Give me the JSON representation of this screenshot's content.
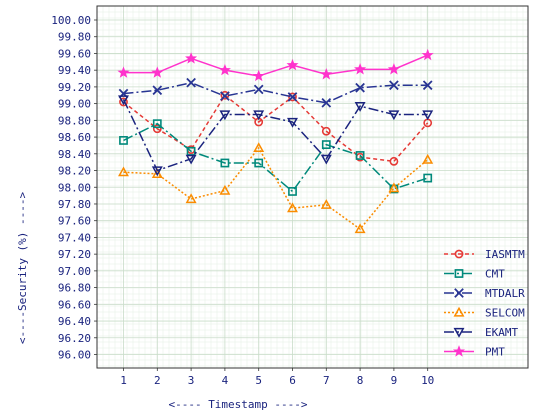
{
  "chart_data": {
    "type": "line",
    "xlabel": "<---- Timestamp ---->",
    "ylabel": "<----Security (%) ---->",
    "x": [
      1,
      2,
      3,
      4,
      5,
      6,
      7,
      8,
      9,
      10
    ],
    "xlim": [
      0,
      11
    ],
    "ylim": [
      95.4,
      100.1
    ],
    "y_ticks": [
      96.0,
      96.2,
      96.4,
      96.6,
      96.8,
      97.0,
      97.2,
      97.4,
      97.6,
      97.8,
      98.0,
      98.2,
      98.4,
      98.6,
      98.8,
      99.0,
      99.2,
      99.4,
      99.6,
      99.8,
      100.0
    ],
    "y_tick_labels": [
      "96.00",
      "96.20",
      "96.40",
      "96.60",
      "96.80",
      "97.00",
      "97.20",
      "97.40",
      "97.60",
      "97.80",
      "98.00",
      "98.20",
      "98.40",
      "98.60",
      "98.80",
      "99.00",
      "99.20",
      "99.40",
      "99.60",
      "99.80",
      "100.00"
    ],
    "x_tick_labels": [
      "1",
      "2",
      "3",
      "4",
      "5",
      "6",
      "7",
      "8",
      "9",
      "10"
    ],
    "grid": true,
    "legend_position": "right",
    "series": [
      {
        "name": "IASMTM",
        "color": "#e53935",
        "dash": "4,3",
        "marker": "circle",
        "values": [
          99.02,
          98.7,
          98.45,
          99.1,
          98.78,
          99.08,
          98.67,
          98.36,
          98.31,
          98.77
        ]
      },
      {
        "name": "CMT",
        "color": "#00897b",
        "dash": "10,3,2,3",
        "marker": "square",
        "values": [
          98.56,
          98.76,
          98.43,
          98.29,
          98.29,
          97.95,
          98.51,
          98.38,
          97.98,
          98.11
        ]
      },
      {
        "name": "MTDALR",
        "color": "#283593",
        "dash": "10,3,2,3",
        "marker": "x",
        "values": [
          99.12,
          99.16,
          99.25,
          99.09,
          99.17,
          99.08,
          99.01,
          99.19,
          99.22,
          99.22
        ]
      },
      {
        "name": "SELCOM",
        "color": "#fb8c00",
        "dash": "2,2",
        "marker": "triangle-up",
        "values": [
          98.18,
          98.16,
          97.86,
          97.96,
          98.47,
          97.75,
          97.79,
          97.5,
          97.99,
          98.33
        ]
      },
      {
        "name": "EKAMT",
        "color": "#1a237e",
        "dash": "10,3,2,3",
        "marker": "triangle-down",
        "values": [
          99.05,
          98.2,
          98.34,
          98.87,
          98.87,
          98.78,
          98.34,
          98.97,
          98.87,
          98.87
        ]
      },
      {
        "name": "PMT",
        "color": "#ff33cc",
        "dash": "",
        "marker": "star",
        "values": [
          99.37,
          99.37,
          99.54,
          99.4,
          99.33,
          99.46,
          99.35,
          99.41,
          99.41,
          99.58
        ]
      }
    ]
  }
}
